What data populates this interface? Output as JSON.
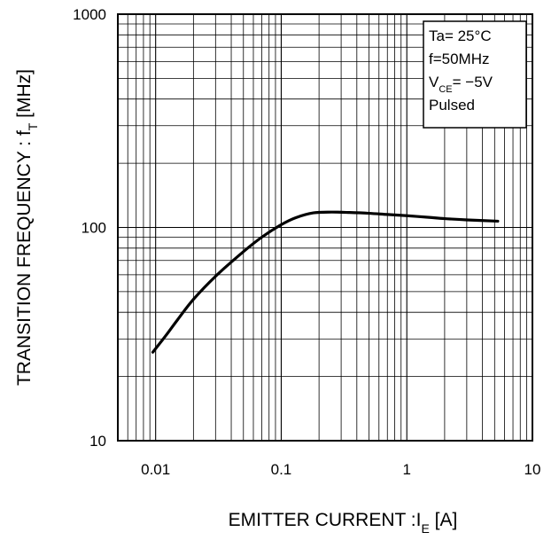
{
  "chart_data": {
    "type": "line",
    "xscale": "log",
    "yscale": "log",
    "xlim": [
      0.005,
      10
    ],
    "ylim": [
      10,
      1000
    ],
    "grid": true,
    "x_ticks": [
      "0.01",
      "0.1",
      "1",
      "10"
    ],
    "x_tick_values": [
      0.01,
      0.1,
      1,
      10
    ],
    "y_ticks": [
      "10",
      "100",
      "1000"
    ],
    "y_tick_values": [
      10,
      100,
      1000
    ],
    "ylabel": {
      "main": "TRANSITION FREQUENCY : f",
      "sub": "T",
      "unit": " [MHz]"
    },
    "xlabel": {
      "main": "EMITTER CURRENT :I",
      "sub": "E",
      "unit": " [A]"
    },
    "conditions": [
      {
        "text": "Ta= 25°C"
      },
      {
        "text": "f=50MHz"
      },
      {
        "pre": "V",
        "sub": "CE",
        "post": "= −5V"
      },
      {
        "text": "Pulsed"
      }
    ],
    "legend_position": "top-right",
    "series": [
      {
        "color": "#000000",
        "x": [
          0.0095,
          0.012,
          0.015,
          0.02,
          0.03,
          0.05,
          0.07,
          0.1,
          0.13,
          0.18,
          0.25,
          0.35,
          0.5,
          0.7,
          1.0,
          1.5,
          2.0,
          3.0,
          5.3
        ],
        "y": [
          26,
          31,
          37,
          46,
          59,
          77,
          90,
          103,
          111,
          117,
          118,
          117.5,
          116.5,
          115,
          113.5,
          111.5,
          110,
          108.5,
          107
        ]
      }
    ]
  }
}
